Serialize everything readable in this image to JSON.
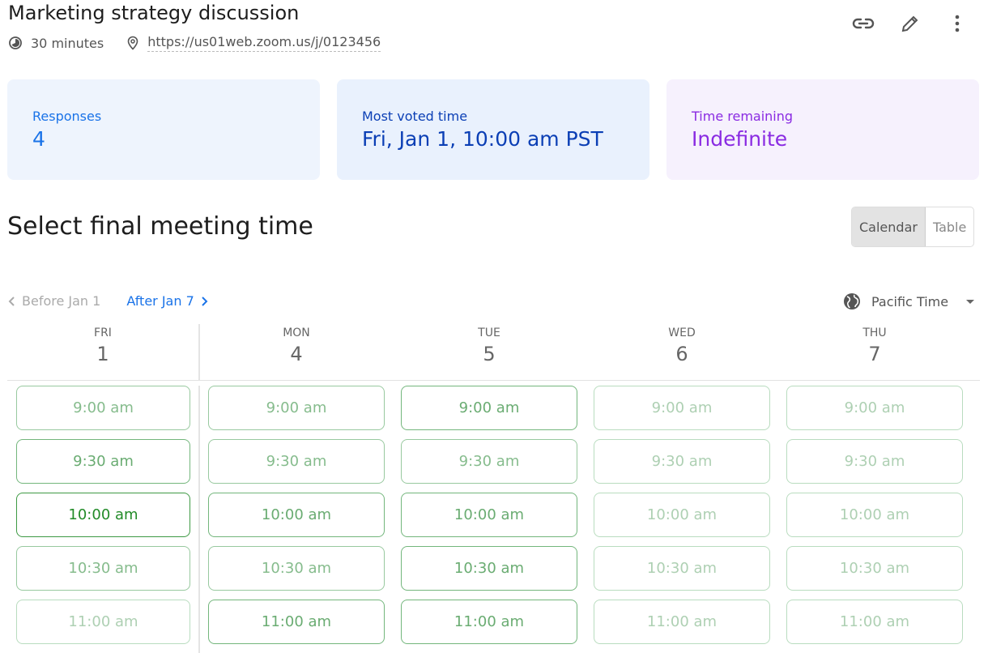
{
  "header": {
    "title": "Marketing strategy discussion",
    "duration": "30 minutes",
    "location": "https://us01web.zoom.us/j/0123456",
    "actions": [
      "link-icon",
      "pencil-icon",
      "more-vert-icon"
    ]
  },
  "cards": [
    {
      "label": "Responses",
      "value": "4",
      "bg": "#eef4fd",
      "color": "#1a73e8"
    },
    {
      "label": "Most voted time",
      "value": "Fri, Jan 1, 10:00 am PST",
      "bg": "#e9f1fd",
      "color": "#0b3fb5"
    },
    {
      "label": "Time remaining",
      "value": "Indefinite",
      "bg": "#f6f1fd",
      "color": "#8a2be2"
    }
  ],
  "section_title": "Select final meeting time",
  "view_toggle": {
    "calendar": "Calendar",
    "table": "Table",
    "selected": "Calendar"
  },
  "nav": {
    "prev": "Before Jan 1",
    "next": "After Jan 7"
  },
  "timezone": "Pacific Time",
  "days": [
    {
      "dow": "FRI",
      "date": "1",
      "slots": [
        {
          "time": "9:00 am",
          "level": 2
        },
        {
          "time": "9:30 am",
          "level": 3
        },
        {
          "time": "10:00 am",
          "level": 4
        },
        {
          "time": "10:30 am",
          "level": 2
        },
        {
          "time": "11:00 am",
          "level": 1
        }
      ]
    },
    {
      "dow": "MON",
      "date": "4",
      "slots": [
        {
          "time": "9:00 am",
          "level": 2
        },
        {
          "time": "9:30 am",
          "level": 2
        },
        {
          "time": "10:00 am",
          "level": 3
        },
        {
          "time": "10:30 am",
          "level": 2
        },
        {
          "time": "11:00 am",
          "level": 3
        }
      ]
    },
    {
      "dow": "TUE",
      "date": "5",
      "slots": [
        {
          "time": "9:00 am",
          "level": 3
        },
        {
          "time": "9:30 am",
          "level": 2
        },
        {
          "time": "10:00 am",
          "level": 3
        },
        {
          "time": "10:30 am",
          "level": 3
        },
        {
          "time": "11:00 am",
          "level": 3
        }
      ]
    },
    {
      "dow": "WED",
      "date": "6",
      "slots": [
        {
          "time": "9:00 am",
          "level": 1
        },
        {
          "time": "9:30 am",
          "level": 1
        },
        {
          "time": "10:00 am",
          "level": 1
        },
        {
          "time": "10:30 am",
          "level": 1
        },
        {
          "time": "11:00 am",
          "level": 1
        }
      ]
    },
    {
      "dow": "THU",
      "date": "7",
      "slots": [
        {
          "time": "9:00 am",
          "level": 1
        },
        {
          "time": "9:30 am",
          "level": 1
        },
        {
          "time": "10:00 am",
          "level": 1
        },
        {
          "time": "10:30 am",
          "level": 1
        },
        {
          "time": "11:00 am",
          "level": 1
        }
      ]
    }
  ]
}
